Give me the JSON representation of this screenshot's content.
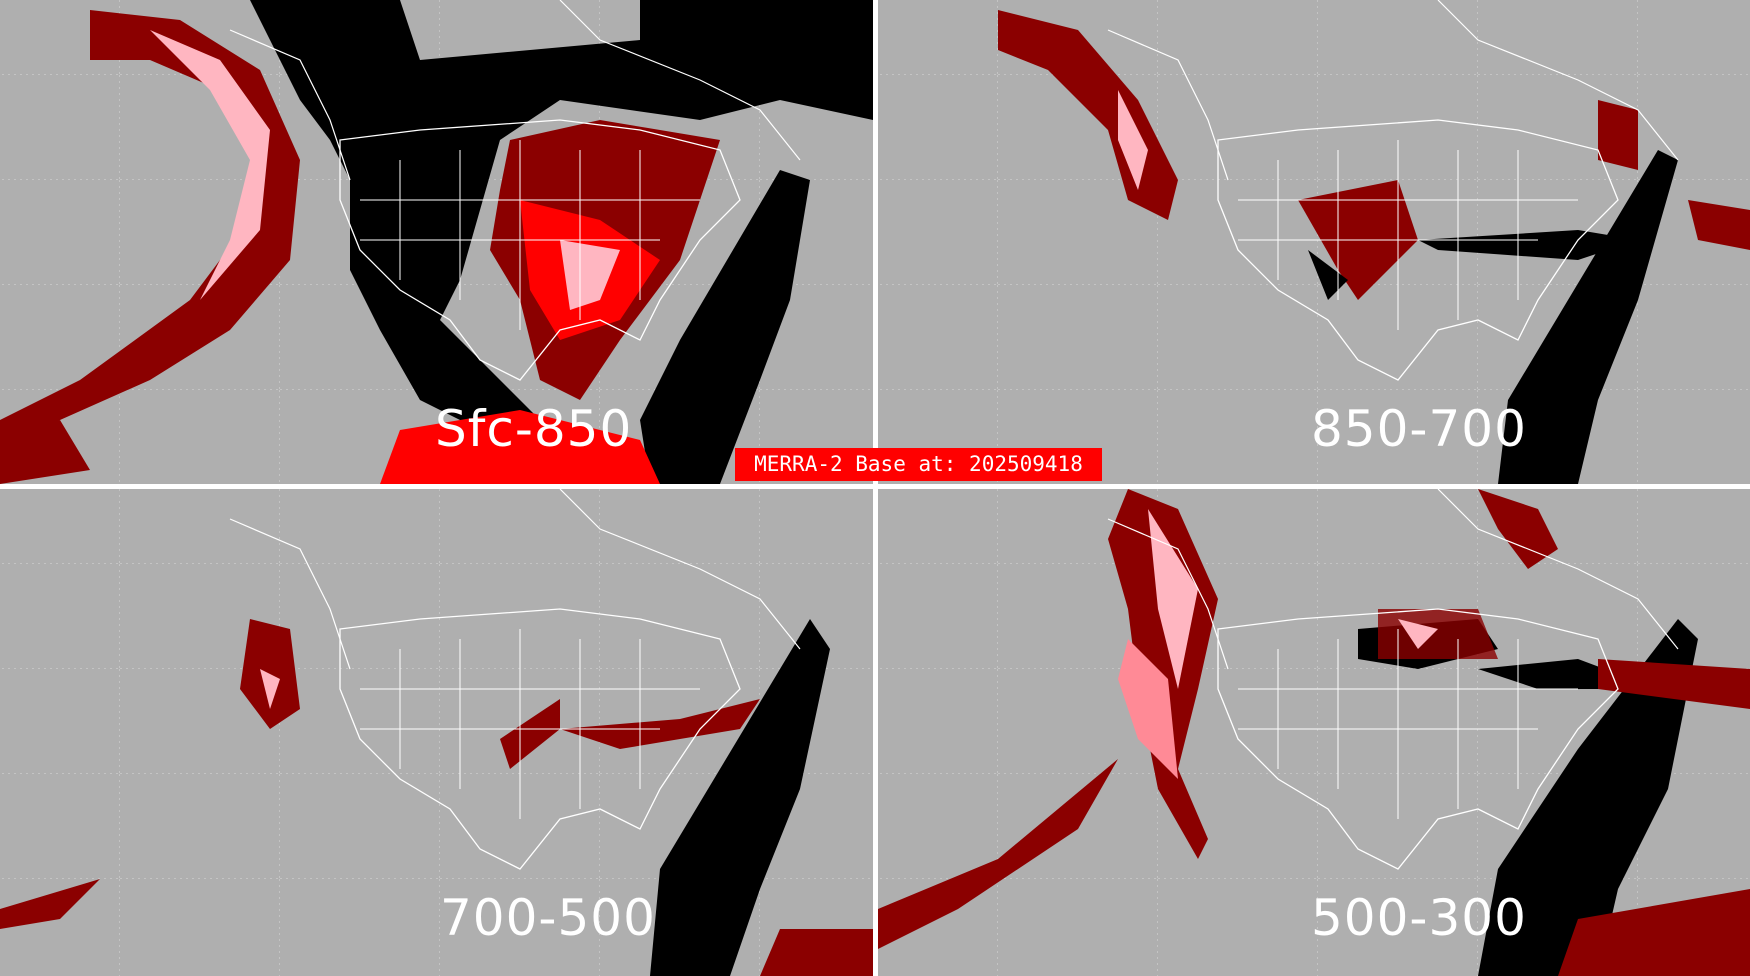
{
  "banner": {
    "text": "MERRA-2 Base at: 202509418"
  },
  "panels": [
    {
      "label": "Sfc-850"
    },
    {
      "label": "850-700"
    },
    {
      "label": "700-500"
    },
    {
      "label": "500-300"
    }
  ],
  "colors": {
    "background": "#afafaf",
    "dark_red": "#8b0000",
    "pink": "#ffb6c1",
    "red": "#ff0000",
    "black": "#000000",
    "coastlines": "#ffffff"
  }
}
